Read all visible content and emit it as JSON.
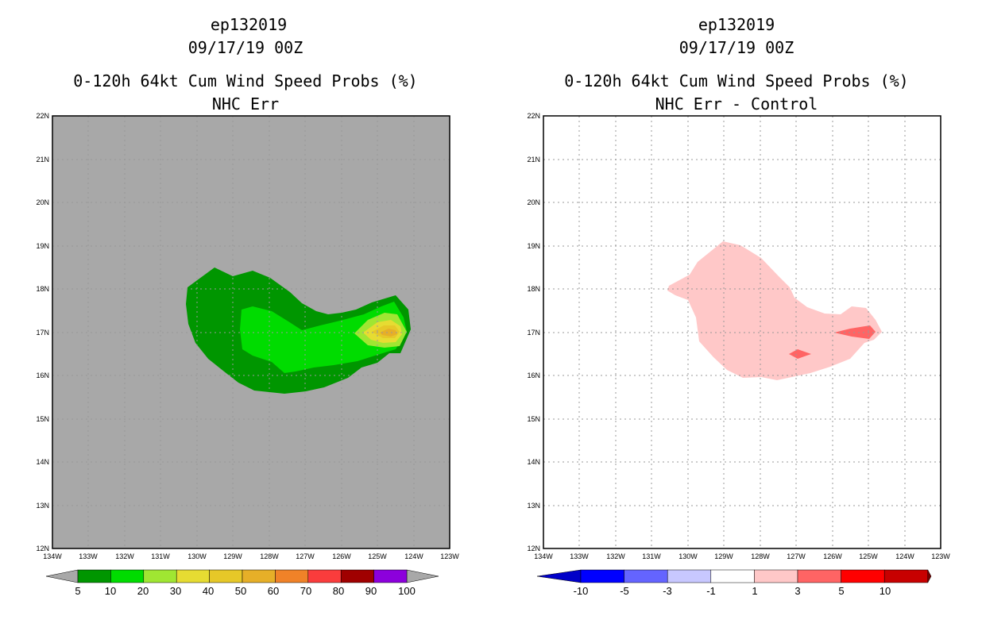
{
  "colors": {
    "land": "#a8a8a8",
    "grid": "#999999"
  },
  "left_panel": {
    "storm_id": "ep132019",
    "datetime": "09/17/19 00Z",
    "title": "0-120h 64kt Cum Wind Speed Probs (%)",
    "subtitle": "NHC Err",
    "lat_labels": [
      "22N",
      "21N",
      "20N",
      "19N",
      "18N",
      "17N",
      "16N",
      "15N",
      "14N",
      "13N",
      "12N"
    ],
    "lon_labels": [
      "134W",
      "133W",
      "132W",
      "131W",
      "130W",
      "129W",
      "128W",
      "127W",
      "126W",
      "125W",
      "124W",
      "123W"
    ],
    "colorbar": {
      "labels": [
        "5",
        "10",
        "20",
        "30",
        "40",
        "50",
        "60",
        "70",
        "80",
        "90",
        "100"
      ],
      "colors": [
        "#009600",
        "#00dc00",
        "#a0e632",
        "#e6dc32",
        "#e6c828",
        "#e6af28",
        "#f08228",
        "#fa3c3c",
        "#a00000",
        "#8c00dc"
      ]
    }
  },
  "right_panel": {
    "storm_id": "ep132019",
    "datetime": "09/17/19 00Z",
    "title": "0-120h 64kt Cum Wind Speed Probs (%)",
    "subtitle": "NHC Err - Control",
    "lat_labels": [
      "22N",
      "21N",
      "20N",
      "19N",
      "18N",
      "17N",
      "16N",
      "15N",
      "14N",
      "13N",
      "12N"
    ],
    "lon_labels": [
      "134W",
      "133W",
      "132W",
      "131W",
      "130W",
      "129W",
      "128W",
      "127W",
      "126W",
      "125W",
      "124W",
      "123W"
    ],
    "colorbar": {
      "labels": [
        "-10",
        "-5",
        "-3",
        "-1",
        "1",
        "3",
        "5",
        "10"
      ],
      "colors": [
        "#0000c8",
        "#0000ff",
        "#6464ff",
        "#c8c8ff",
        "#ffffff",
        "#ffc8c8",
        "#ff6464",
        "#ff0000",
        "#c80000",
        "#780000"
      ]
    }
  }
}
